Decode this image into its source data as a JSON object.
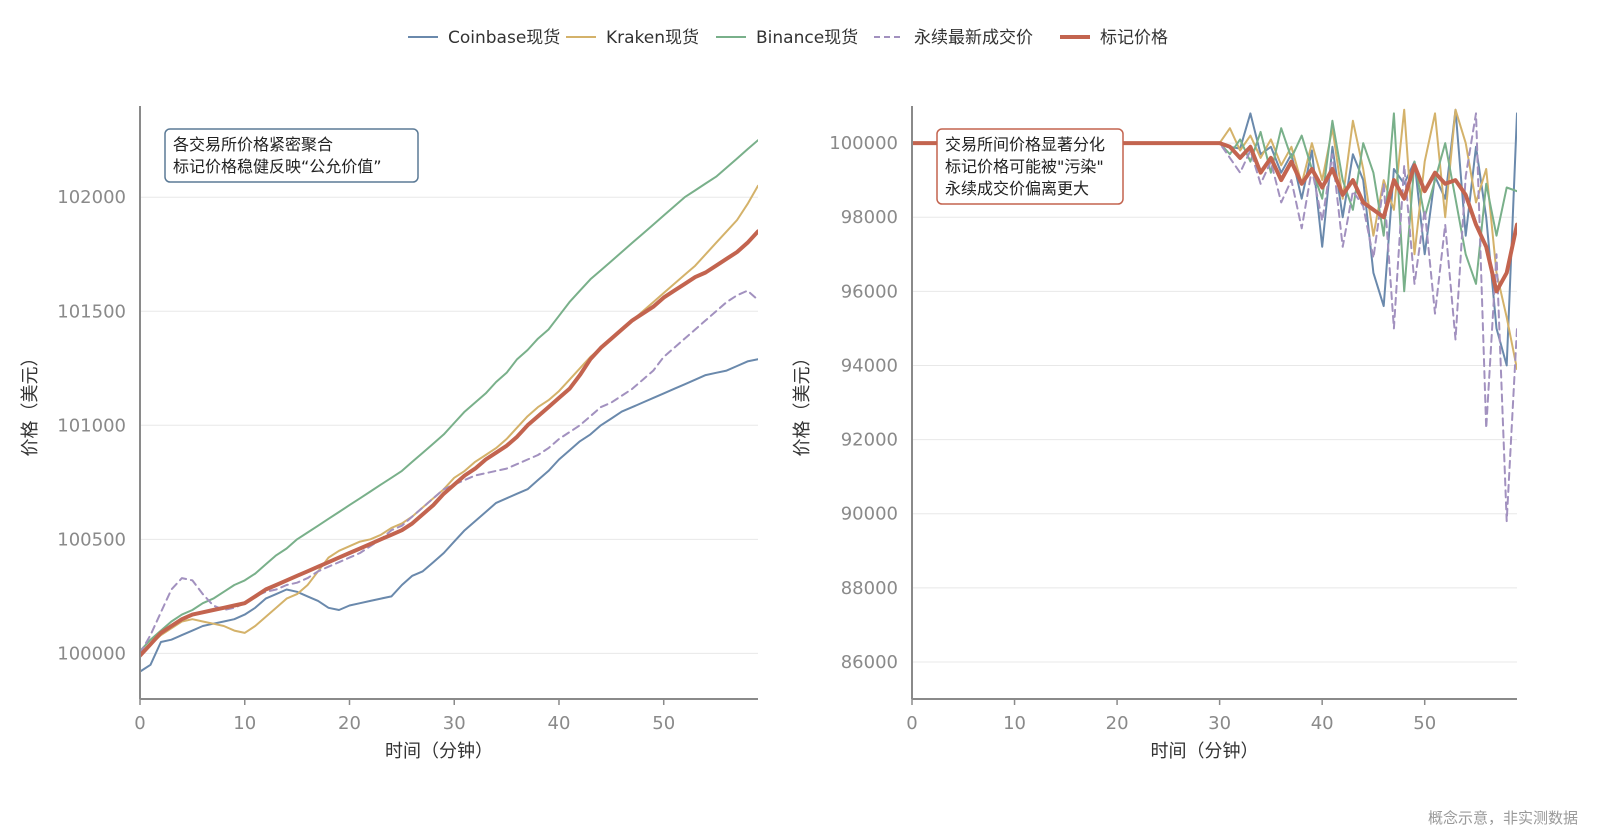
{
  "colors": {
    "coinbase": "#6a89ac",
    "kraken": "#d4b26a",
    "binance": "#79b08a",
    "perp": "#a291bf",
    "mark": "#c3644f",
    "axis": "#8a8a8a",
    "grid": "#e8e8e8",
    "ann_left_border": "#5b7a96",
    "ann_right_border": "#c3644f"
  },
  "legend": [
    {
      "key": "coinbase",
      "label": "Coinbase现货",
      "dashed": false
    },
    {
      "key": "kraken",
      "label": "Kraken现货",
      "dashed": false
    },
    {
      "key": "binance",
      "label": "Binance现货",
      "dashed": false
    },
    {
      "key": "perp",
      "label": "永续最新成交价",
      "dashed": true
    },
    {
      "key": "mark",
      "label": "标记价格",
      "dashed": false
    }
  ],
  "footnote": "概念示意，非实测数据",
  "chart_data": [
    {
      "type": "line",
      "xlabel": "时间（分钟）",
      "ylabel": "价格（美元）",
      "xlim": [
        0,
        59
      ],
      "ylim": [
        99800,
        102400
      ],
      "xticks": [
        0,
        10,
        20,
        30,
        40,
        50
      ],
      "yticks": [
        100000,
        100500,
        101000,
        101500,
        102000
      ],
      "grid": "horizontal",
      "annotation": [
        "各交易所价格紧密聚合",
        "标记价格稳健反映“公允价值”"
      ],
      "x": [
        0,
        1,
        2,
        3,
        4,
        5,
        6,
        7,
        8,
        9,
        10,
        11,
        12,
        13,
        14,
        15,
        16,
        17,
        18,
        19,
        20,
        21,
        22,
        23,
        24,
        25,
        26,
        27,
        28,
        29,
        30,
        31,
        32,
        33,
        34,
        35,
        36,
        37,
        38,
        39,
        40,
        41,
        42,
        43,
        44,
        45,
        46,
        47,
        48,
        49,
        50,
        51,
        52,
        53,
        54,
        55,
        56,
        57,
        58,
        59
      ],
      "series": [
        {
          "key": "coinbase",
          "name": "Coinbase现货",
          "values": [
            99920,
            99950,
            100050,
            100060,
            100080,
            100100,
            100120,
            100130,
            100140,
            100150,
            100170,
            100200,
            100240,
            100260,
            100280,
            100270,
            100250,
            100230,
            100200,
            100190,
            100210,
            100220,
            100230,
            100240,
            100250,
            100300,
            100340,
            100360,
            100400,
            100440,
            100490,
            100540,
            100580,
            100620,
            100660,
            100680,
            100700,
            100720,
            100760,
            100800,
            100850,
            100890,
            100930,
            100960,
            101000,
            101030,
            101060,
            101080,
            101100,
            101120,
            101140,
            101160,
            101180,
            101200,
            101220,
            101230,
            101240,
            101260,
            101280,
            101290
          ]
        },
        {
          "key": "kraken",
          "name": "Kraken现货",
          "values": [
            99990,
            100040,
            100080,
            100110,
            100140,
            100150,
            100140,
            100130,
            100120,
            100100,
            100090,
            100120,
            100160,
            100200,
            100240,
            100260,
            100300,
            100360,
            100420,
            100450,
            100470,
            100490,
            100500,
            100520,
            100550,
            100570,
            100600,
            100640,
            100680,
            100720,
            100770,
            100800,
            100840,
            100870,
            100900,
            100940,
            100990,
            101040,
            101080,
            101110,
            101150,
            101200,
            101250,
            101300,
            101340,
            101380,
            101420,
            101460,
            101500,
            101540,
            101580,
            101620,
            101660,
            101700,
            101750,
            101800,
            101850,
            101900,
            101970,
            102050
          ]
        },
        {
          "key": "binance",
          "name": "Binance现货",
          "values": [
            100010,
            100060,
            100100,
            100140,
            100170,
            100190,
            100220,
            100240,
            100270,
            100300,
            100320,
            100350,
            100390,
            100430,
            100460,
            100500,
            100530,
            100560,
            100590,
            100620,
            100650,
            100680,
            100710,
            100740,
            100770,
            100800,
            100840,
            100880,
            100920,
            100960,
            101010,
            101060,
            101100,
            101140,
            101190,
            101230,
            101290,
            101330,
            101380,
            101420,
            101480,
            101540,
            101590,
            101640,
            101680,
            101720,
            101760,
            101800,
            101840,
            101880,
            101920,
            101960,
            102000,
            102030,
            102060,
            102090,
            102130,
            102170,
            102210,
            102250
          ]
        },
        {
          "key": "perp",
          "name": "永续最新成交价",
          "dashed": true,
          "values": [
            100000,
            100080,
            100180,
            100280,
            100330,
            100320,
            100260,
            100210,
            100190,
            100200,
            100220,
            100250,
            100270,
            100280,
            100300,
            100310,
            100330,
            100360,
            100380,
            100400,
            100420,
            100440,
            100470,
            100500,
            100540,
            100560,
            100600,
            100640,
            100680,
            100720,
            100740,
            100760,
            100780,
            100790,
            100800,
            100810,
            100830,
            100850,
            100870,
            100900,
            100940,
            100970,
            101000,
            101040,
            101080,
            101100,
            101130,
            101160,
            101200,
            101240,
            101300,
            101340,
            101380,
            101420,
            101460,
            101500,
            101540,
            101570,
            101590,
            101550
          ]
        },
        {
          "key": "mark",
          "name": "标记价格",
          "values": [
            99990,
            100040,
            100090,
            100120,
            100150,
            100170,
            100180,
            100190,
            100200,
            100210,
            100220,
            100250,
            100280,
            100300,
            100320,
            100340,
            100360,
            100380,
            100400,
            100420,
            100440,
            100460,
            100480,
            100500,
            100520,
            100540,
            100570,
            100610,
            100650,
            100700,
            100740,
            100780,
            100810,
            100850,
            100880,
            100910,
            100950,
            101000,
            101040,
            101080,
            101120,
            101160,
            101220,
            101290,
            101340,
            101380,
            101420,
            101460,
            101490,
            101520,
            101560,
            101590,
            101620,
            101650,
            101670,
            101700,
            101730,
            101760,
            101800,
            101850
          ]
        }
      ]
    },
    {
      "type": "line",
      "xlabel": "时间（分钟）",
      "ylabel": "价格（美元）",
      "xlim": [
        0,
        59
      ],
      "ylim": [
        85000,
        101000
      ],
      "xticks": [
        0,
        10,
        20,
        30,
        40,
        50
      ],
      "yticks": [
        86000,
        88000,
        90000,
        92000,
        94000,
        96000,
        98000,
        100000
      ],
      "grid": "horizontal",
      "annotation": [
        "交易所间价格显著分化",
        "标记价格可能被\"污染\"",
        "永续成交价偏离更大"
      ],
      "x": [
        0,
        1,
        2,
        3,
        4,
        5,
        6,
        7,
        8,
        9,
        10,
        11,
        12,
        13,
        14,
        15,
        16,
        17,
        18,
        19,
        20,
        21,
        22,
        23,
        24,
        25,
        26,
        27,
        28,
        29,
        30,
        31,
        32,
        33,
        34,
        35,
        36,
        37,
        38,
        39,
        40,
        41,
        42,
        43,
        44,
        45,
        46,
        47,
        48,
        49,
        50,
        51,
        52,
        53,
        54,
        55,
        56,
        57,
        58,
        59
      ],
      "series": [
        {
          "key": "coinbase",
          "name": "Coinbase现货",
          "values": [
            100000,
            100000,
            100000,
            100000,
            100000,
            100000,
            100000,
            100000,
            100000,
            100000,
            100000,
            100000,
            100000,
            100000,
            100000,
            100000,
            100000,
            100000,
            100000,
            100000,
            100000,
            100000,
            100000,
            100000,
            100000,
            100000,
            100000,
            100000,
            100000,
            100000,
            100000,
            99900,
            99850,
            100800,
            99700,
            99900,
            99200,
            99700,
            98500,
            99800,
            97200,
            99900,
            98000,
            99700,
            99000,
            96500,
            95600,
            99300,
            98900,
            99500,
            97000,
            99100,
            98500,
            100900,
            97500,
            99900,
            98000,
            95000,
            94000,
            100800
          ]
        },
        {
          "key": "kraken",
          "name": "Kraken现货",
          "values": [
            100000,
            100000,
            100000,
            100000,
            100000,
            100000,
            100000,
            100000,
            100000,
            100000,
            100000,
            100000,
            100000,
            100000,
            100000,
            100000,
            100000,
            100000,
            100000,
            100000,
            100000,
            100000,
            100000,
            100000,
            100000,
            100000,
            100000,
            100000,
            100000,
            100000,
            100000,
            100400,
            99800,
            100200,
            99600,
            100100,
            99400,
            99900,
            98900,
            100000,
            99000,
            100400,
            98500,
            100600,
            99300,
            97500,
            99000,
            98200,
            100900,
            97000,
            99500,
            100800,
            98000,
            100900,
            100000,
            98400,
            99300,
            96500,
            95300,
            93900
          ]
        },
        {
          "key": "binance",
          "name": "Binance现货",
          "values": [
            100000,
            100000,
            100000,
            100000,
            100000,
            100000,
            100000,
            100000,
            100000,
            100000,
            100000,
            100000,
            100000,
            100000,
            100000,
            100000,
            100000,
            100000,
            100000,
            100000,
            100000,
            100000,
            100000,
            100000,
            100000,
            100000,
            100000,
            100000,
            100000,
            100000,
            100000,
            99700,
            100100,
            99500,
            100300,
            99200,
            100400,
            99600,
            100200,
            99300,
            98500,
            100600,
            99000,
            98200,
            100000,
            99200,
            97500,
            100800,
            96000,
            99500,
            98000,
            99000,
            100000,
            98500,
            97000,
            96200,
            98900,
            97500,
            98800,
            98700
          ]
        },
        {
          "key": "perp",
          "name": "永续最新成交价",
          "dashed": true,
          "values": [
            100000,
            100000,
            100000,
            100000,
            100000,
            100000,
            100000,
            100000,
            100000,
            100000,
            100000,
            100000,
            100000,
            100000,
            100000,
            100000,
            100000,
            100000,
            100000,
            100000,
            100000,
            100000,
            100000,
            100000,
            100000,
            100000,
            100000,
            100000,
            100000,
            100000,
            100000,
            99600,
            99200,
            99800,
            98900,
            99500,
            98400,
            99000,
            97700,
            99300,
            97900,
            99700,
            97200,
            98700,
            98300,
            96900,
            98900,
            95000,
            99400,
            96200,
            98200,
            95400,
            97800,
            94700,
            99100,
            100800,
            92300,
            97000,
            89800,
            95000
          ]
        },
        {
          "key": "mark",
          "name": "标记价格",
          "values": [
            100000,
            100000,
            100000,
            100000,
            100000,
            100000,
            100000,
            100000,
            100000,
            100000,
            100000,
            100000,
            100000,
            100000,
            100000,
            100000,
            100000,
            100000,
            100000,
            100000,
            100000,
            100000,
            100000,
            100000,
            100000,
            100000,
            100000,
            100000,
            100000,
            100000,
            100000,
            99900,
            99600,
            99900,
            99200,
            99600,
            99000,
            99500,
            98900,
            99300,
            98800,
            99300,
            98600,
            99000,
            98400,
            98200,
            98000,
            99000,
            98500,
            99400,
            98700,
            99200,
            98900,
            99000,
            98600,
            97800,
            97200,
            96000,
            96500,
            97800
          ]
        }
      ]
    }
  ]
}
